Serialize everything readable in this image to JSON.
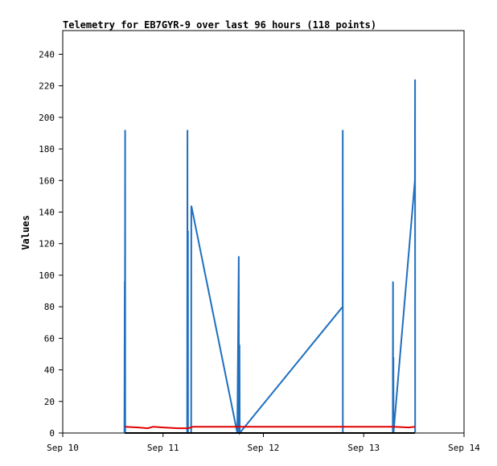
{
  "chart_data": {
    "type": "line",
    "title": "Telemetry for EB7GYR-9 over last 96 hours (118 points)",
    "xlabel": "",
    "ylabel": "Values",
    "x_ticks": [
      "Sep 10",
      "Sep 11",
      "Sep 12",
      "Sep 13",
      "Sep 14"
    ],
    "x_range_days": [
      0,
      4
    ],
    "y_ticks": [
      0,
      20,
      40,
      60,
      80,
      100,
      120,
      140,
      160,
      180,
      200,
      220,
      240
    ],
    "ylim": [
      0,
      255
    ],
    "grid": false,
    "series": [
      {
        "color": "#1f6fbf",
        "points": [
          [
            0.615,
            0
          ],
          [
            0.618,
            96
          ],
          [
            0.619,
            0
          ],
          [
            0.622,
            192
          ],
          [
            0.623,
            0
          ],
          [
            1.24,
            0
          ],
          [
            1.243,
            192
          ],
          [
            1.244,
            0
          ],
          [
            1.248,
            128
          ],
          [
            1.249,
            0
          ],
          [
            1.28,
            0
          ],
          [
            1.282,
            144
          ],
          [
            1.74,
            0
          ],
          [
            1.755,
            112
          ],
          [
            1.757,
            0
          ],
          [
            1.762,
            56
          ],
          [
            1.764,
            0
          ],
          [
            2.79,
            80
          ],
          [
            2.791,
            192
          ],
          [
            2.792,
            0
          ],
          [
            3.29,
            0
          ],
          [
            3.292,
            96
          ],
          [
            3.293,
            0
          ],
          [
            3.296,
            48
          ],
          [
            3.297,
            0
          ],
          [
            3.51,
            160
          ],
          [
            3.512,
            224
          ],
          [
            3.513,
            0
          ]
        ]
      },
      {
        "color": "#e00000",
        "points": [
          [
            0.62,
            4
          ],
          [
            0.75,
            3.5
          ],
          [
            0.85,
            3
          ],
          [
            0.9,
            4
          ],
          [
            1.0,
            3.5
          ],
          [
            1.15,
            3
          ],
          [
            1.25,
            3
          ],
          [
            1.3,
            4
          ],
          [
            1.75,
            4
          ],
          [
            1.8,
            4
          ],
          [
            2.5,
            4
          ],
          [
            3.0,
            4
          ],
          [
            3.3,
            4
          ],
          [
            3.45,
            3.5
          ],
          [
            3.51,
            4
          ]
        ]
      },
      {
        "color": "#000000",
        "points": [
          [
            0.62,
            0
          ],
          [
            3.51,
            0
          ]
        ]
      }
    ]
  }
}
